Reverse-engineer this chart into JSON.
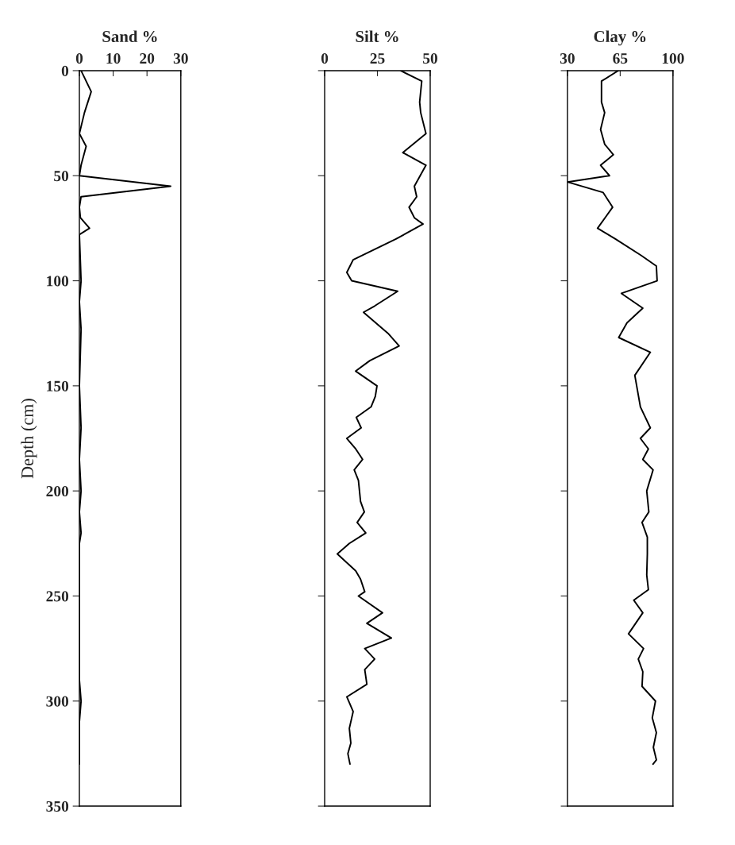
{
  "chart_data": [
    {
      "type": "line",
      "title": "Sand %",
      "ylabel": "Depth (cm)",
      "xlim": [
        0,
        30
      ],
      "xticks": [
        0,
        10,
        20,
        30
      ],
      "ylim": [
        350,
        0
      ],
      "yticks": [
        0,
        50,
        100,
        150,
        200,
        250,
        300,
        350
      ],
      "grid": false,
      "legend": false,
      "series": [
        {
          "color": "#000000",
          "x": [
            0.5,
            3.5,
            1.5,
            0,
            2,
            0.5,
            0,
            27,
            0.5,
            0,
            0.3,
            3,
            0,
            0.5,
            0,
            0.5,
            0,
            0.5,
            0,
            0.5,
            0,
            0.5,
            0,
            0,
            0.5,
            0,
            0
          ],
          "values": [
            0,
            10,
            20,
            30,
            36,
            45,
            50,
            55,
            60,
            65,
            70,
            75,
            78,
            100,
            110,
            123,
            150,
            170,
            185,
            200,
            210,
            220,
            225,
            290,
            300,
            310,
            330
          ]
        }
      ]
    },
    {
      "type": "line",
      "title": "Silt %",
      "xlim": [
        0,
        50
      ],
      "xticks": [
        0,
        25,
        50
      ],
      "ylim": [
        350,
        0
      ],
      "yticks": [
        0,
        50,
        100,
        150,
        200,
        250,
        300,
        350
      ],
      "tick_labels": "x",
      "grid": false,
      "legend": false,
      "series": [
        {
          "color": "#000000",
          "x": [
            36,
            46,
            45,
            45.5,
            48,
            37,
            48,
            42.5,
            43.6,
            40,
            42.5,
            46.6,
            34,
            13.5,
            10.5,
            12.8,
            34.6,
            23.7,
            18.4,
            30,
            35.3,
            21.4,
            14.7,
            24.8,
            24,
            22,
            15,
            17.3,
            10.5,
            14.7,
            18,
            14,
            16,
            17,
            18.8,
            15.4,
            19.5,
            11.7,
            6,
            14.7,
            17,
            19,
            16,
            27.4,
            20,
            31.6,
            19,
            23.7,
            19,
            20,
            10.5,
            13.5,
            11.7,
            12.4,
            11,
            12
          ],
          "values": [
            0,
            5,
            15,
            20,
            30,
            39,
            45,
            55,
            60,
            65,
            70,
            73,
            80,
            90,
            96,
            100,
            105,
            112,
            115,
            125,
            131,
            138,
            143,
            150,
            155,
            160,
            165,
            170,
            175,
            180,
            185,
            190,
            195,
            205,
            210,
            215,
            220,
            225,
            230,
            238,
            242,
            248,
            250,
            258,
            263,
            270,
            275,
            280,
            285,
            292,
            298,
            305,
            313,
            320,
            325,
            330
          ]
        }
      ]
    },
    {
      "type": "line",
      "title": "Clay %",
      "xlim": [
        30,
        100
      ],
      "xticks": [
        30,
        65,
        100
      ],
      "ylim": [
        350,
        0
      ],
      "yticks": [
        0,
        50,
        100,
        150,
        200,
        250,
        300,
        350
      ],
      "tick_labels": "x",
      "grid": false,
      "legend": false,
      "series": [
        {
          "color": "#000000",
          "x": [
            63.7,
            52.6,
            52.6,
            54.7,
            52,
            54.7,
            60.5,
            52,
            57.9,
            30,
            53.7,
            60,
            50,
            61.6,
            79,
            89,
            89.5,
            65.8,
            80,
            69.5,
            64,
            85,
            74.7,
            78.4,
            85,
            78.4,
            83.7,
            80,
            86.8,
            82.6,
            84,
            79.5,
            83,
            83,
            82.6,
            83.7,
            74,
            80,
            70.5,
            80.5,
            77,
            80,
            79.5,
            88.4,
            86.3,
            89,
            87,
            89,
            86.8
          ],
          "values": [
            0,
            5,
            15,
            20,
            28,
            35,
            40,
            45,
            50,
            53,
            58,
            65,
            75,
            80,
            88,
            93,
            100,
            106,
            113,
            120,
            127,
            134,
            145,
            160,
            170,
            175,
            180,
            185,
            190,
            200,
            210,
            215,
            222,
            230,
            240,
            247,
            252,
            258,
            268,
            275,
            280,
            286,
            293,
            300,
            308,
            315,
            322,
            328,
            330
          ]
        }
      ]
    }
  ]
}
